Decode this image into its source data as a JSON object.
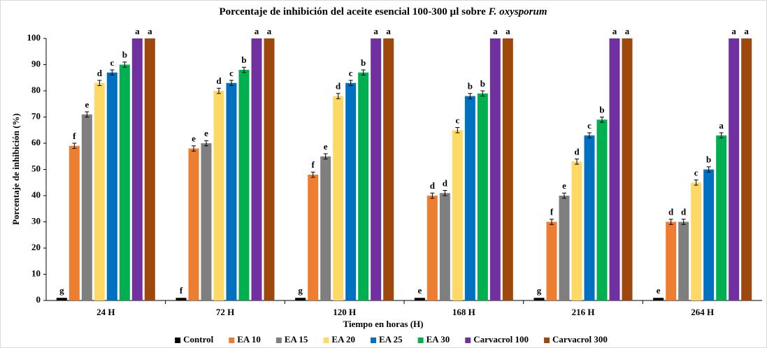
{
  "chart_data": {
    "type": "bar",
    "title": [
      "Porcentaje de inhibición del aceite esencial 100-300 µl sobre",
      "F. oxysporum"
    ],
    "xlabel": "Tiempo en horas (H)",
    "ylabel": "Porcentaje de inhibición (%)",
    "categories": [
      "24 H",
      "72 H",
      "120 H",
      "168 H",
      "216 H",
      "264 H"
    ],
    "ylim": [
      0,
      100
    ],
    "yticks": [
      0,
      10,
      20,
      30,
      40,
      50,
      60,
      70,
      80,
      90,
      100
    ],
    "grid": false,
    "legend": "bottom",
    "series": [
      {
        "name": "Control",
        "color": "#000000",
        "values": [
          1,
          1,
          1,
          1,
          1,
          1
        ],
        "letters": [
          "g",
          "f",
          "g",
          "e",
          "g",
          "e"
        ]
      },
      {
        "name": "EA 10",
        "color": "#ed7d31",
        "values": [
          59,
          58,
          48,
          40,
          30,
          30
        ],
        "errors": [
          1,
          1,
          1,
          1,
          1,
          1
        ],
        "letters": [
          "f",
          "e",
          "f",
          "d",
          "f",
          "d"
        ]
      },
      {
        "name": "EA 15",
        "color": "#7f7f7f",
        "values": [
          71,
          60,
          55,
          41,
          40,
          30
        ],
        "errors": [
          1,
          1,
          1,
          1,
          1,
          1
        ],
        "letters": [
          "e",
          "e",
          "e",
          "d",
          "e",
          "d"
        ]
      },
      {
        "name": "EA 20",
        "color": "#ffd966",
        "values": [
          83,
          80,
          78,
          65,
          53,
          45
        ],
        "errors": [
          1,
          1,
          1,
          1,
          1,
          1
        ],
        "letters": [
          "d",
          "d",
          "d",
          "c",
          "d",
          "c"
        ]
      },
      {
        "name": "EA 25",
        "color": "#0070c0",
        "values": [
          87,
          83,
          83,
          78,
          63,
          50
        ],
        "errors": [
          1,
          1,
          1,
          1,
          1,
          1
        ],
        "letters": [
          "c",
          "c",
          "c",
          "b",
          "c",
          "b"
        ]
      },
      {
        "name": "EA 30",
        "color": "#00b050",
        "values": [
          90,
          88,
          87,
          79,
          69,
          63
        ],
        "errors": [
          1,
          1,
          1,
          1,
          1,
          1
        ],
        "letters": [
          "b",
          "b",
          "b",
          "b",
          "b",
          "a"
        ]
      },
      {
        "name": "Carvacrol 100",
        "color": "#7030a0",
        "values": [
          100,
          100,
          100,
          100,
          100,
          100
        ],
        "letters": [
          "a",
          "a",
          "a",
          "a",
          "a",
          "a"
        ]
      },
      {
        "name": "Carvacrol 300",
        "color": "#9e480e",
        "values": [
          100,
          100,
          100,
          100,
          100,
          100
        ],
        "letters": [
          "a",
          "a",
          "a",
          "a",
          "a",
          "a"
        ]
      }
    ]
  }
}
